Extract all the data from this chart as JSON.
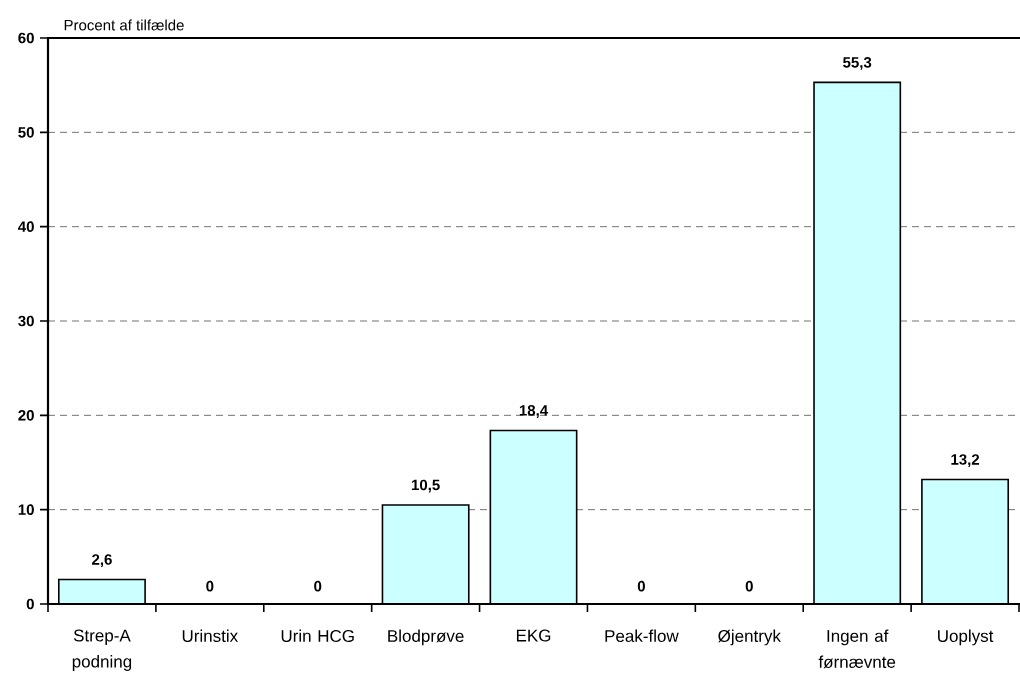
{
  "chart_data": {
    "type": "bar",
    "ylabel": "Procent af tilfælde",
    "categories": [
      "Strep-A podning",
      "Urinstix",
      "Urin HCG",
      "Blodprøve",
      "EKG",
      "Peak-flow",
      "Øjentryk",
      "Ingen af førnævnte",
      "Uoplyst"
    ],
    "values": [
      2.6,
      0,
      0,
      10.5,
      18.4,
      0,
      0,
      55.3,
      13.2
    ],
    "value_labels": [
      "2,6",
      "0",
      "0",
      "10,5",
      "18,4",
      "0",
      "0",
      "55,3",
      "13,2"
    ],
    "color": "#ccffff",
    "ylim": [
      0,
      60
    ],
    "yticks": [
      0,
      10,
      20,
      30,
      40,
      50,
      60
    ],
    "grid": "y"
  }
}
